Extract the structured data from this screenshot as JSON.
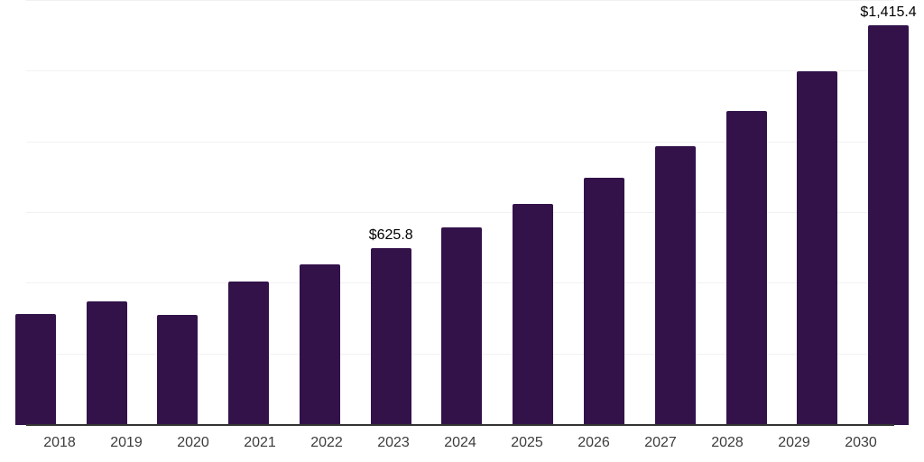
{
  "chart_data": {
    "type": "bar",
    "title": "",
    "xlabel": "",
    "ylabel": "",
    "categories": [
      "2018",
      "2019",
      "2020",
      "2021",
      "2022",
      "2023",
      "2024",
      "2025",
      "2026",
      "2027",
      "2028",
      "2029",
      "2030"
    ],
    "values": [
      392,
      438,
      390,
      507,
      568,
      625.8,
      699,
      782,
      874,
      986,
      1110,
      1251,
      1415.4
    ],
    "data_labels": [
      "",
      "",
      "",
      "",
      "",
      "$625.8",
      "",
      "",
      "",
      "",
      "",
      "",
      "$1,415.4"
    ],
    "ylim": [
      0,
      1500
    ],
    "gridline_step": 250,
    "grid": "horizontal",
    "y_tick_labels_shown": false,
    "legend": "none"
  },
  "colors": {
    "background": "#ffffff",
    "bar": "#33124a",
    "gridline": "#f1f1f1",
    "axis_line": "#333333",
    "value_label": "#000000",
    "tick_label": "#3c3c3c"
  }
}
